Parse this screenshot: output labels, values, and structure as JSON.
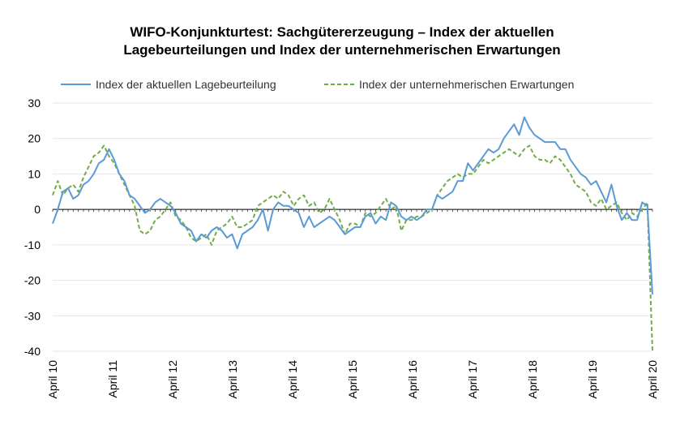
{
  "chart_data": {
    "type": "line",
    "title": "WIFO-Konjunkturtest: Sachgütererzeugung – Index der aktuellen Lagebeurteilungen und Index der unternehmerischen Erwartungen",
    "title_lines": [
      "WIFO-Konjunkturtest: Sachgütererzeugung – Index der aktuellen",
      "Lagebeurteilungen und Index der unternehmerischen Erwartungen"
    ],
    "xlabel": "",
    "ylabel": "",
    "ylim": [
      -40,
      30
    ],
    "yticks": [
      30,
      20,
      10,
      0,
      -10,
      -20,
      -30,
      -40
    ],
    "x_start": "April 10",
    "x_end": "April 20",
    "x_tick_labels": [
      "April 10",
      "April 11",
      "April 12",
      "April 13",
      "April 14",
      "April 15",
      "April 16",
      "April 17",
      "April 18",
      "April 19",
      "April 20"
    ],
    "grid": true,
    "legend_position": "top",
    "series": [
      {
        "name": "Index der aktuellen Lagebeurteilung",
        "color": "#5b9bd5",
        "style": "solid",
        "values": [
          -4,
          0,
          5,
          6,
          3,
          4,
          7,
          8,
          10,
          13,
          14,
          17,
          14,
          10,
          8,
          4,
          3,
          1,
          -1,
          0,
          2,
          3,
          2,
          1,
          -1,
          -4,
          -5,
          -6,
          -9,
          -7,
          -8,
          -6,
          -5,
          -6,
          -8,
          -7,
          -11,
          -7,
          -6,
          -5,
          -3,
          0,
          -6,
          0,
          2,
          1,
          1,
          0,
          -1,
          -5,
          -2,
          -5,
          -4,
          -3,
          -2,
          -3,
          -5,
          -7,
          -6,
          -5,
          -5,
          -2,
          -1,
          -4,
          -2,
          -3,
          2,
          1,
          -2,
          -3,
          -2,
          -3,
          -2,
          0,
          0,
          4,
          3,
          4,
          5,
          8,
          8,
          13,
          11,
          13,
          15,
          17,
          16,
          17,
          20,
          22,
          24,
          21,
          26,
          23,
          21,
          20,
          19,
          19,
          19,
          17,
          17,
          14,
          12,
          10,
          9,
          7,
          8,
          5,
          2,
          7,
          1,
          -3,
          -1,
          -3,
          -3,
          2,
          1,
          -24
        ]
      },
      {
        "name": "Index der unternehmerischen Erwartungen",
        "color": "#70ad47",
        "style": "dashed",
        "values": [
          4,
          8,
          4,
          6,
          7,
          5,
          9,
          12,
          15,
          16,
          18,
          15,
          13,
          10,
          7,
          4,
          1,
          -6,
          -7,
          -6,
          -3,
          -2,
          0,
          2,
          -2,
          -3,
          -5,
          -8,
          -9,
          -8,
          -7,
          -10,
          -6,
          -5,
          -4,
          -2,
          -5,
          -5,
          -4,
          -3,
          1,
          2,
          3,
          4,
          3,
          5,
          4,
          1,
          3,
          4,
          1,
          2,
          -1,
          0,
          3,
          0,
          -3,
          -7,
          -4,
          -4,
          -5,
          -1,
          -2,
          -1,
          1,
          3,
          0,
          1,
          -6,
          -3,
          -3,
          -2,
          -2,
          -1,
          0,
          4,
          6,
          8,
          9,
          10,
          9,
          10,
          10,
          12,
          14,
          13,
          14,
          15,
          16,
          17,
          16,
          15,
          17,
          18,
          15,
          14,
          14,
          13,
          15,
          14,
          12,
          10,
          7,
          6,
          5,
          2,
          1,
          3,
          0,
          1,
          2,
          -1,
          -3,
          -1,
          -2,
          0,
          2,
          -40
        ]
      }
    ]
  }
}
